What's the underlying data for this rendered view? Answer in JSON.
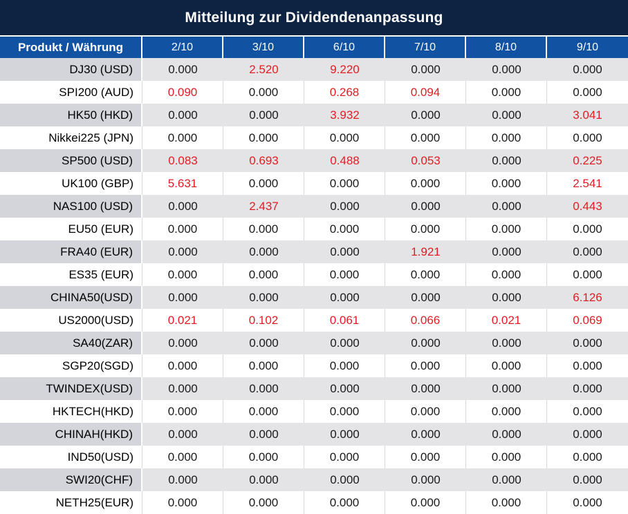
{
  "title": "Mitteilung zur Dividendenanpassung",
  "table": {
    "product_header": "Produkt / Währung",
    "date_headers": [
      "2/10",
      "3/10",
      "6/10",
      "7/10",
      "8/10",
      "9/10"
    ],
    "rows": [
      {
        "product": "DJ30 (USD)",
        "values": [
          "0.000",
          "2.520",
          "9.220",
          "0.000",
          "0.000",
          "0.000"
        ]
      },
      {
        "product": "SPI200 (AUD)",
        "values": [
          "0.090",
          "0.000",
          "0.268",
          "0.094",
          "0.000",
          "0.000"
        ]
      },
      {
        "product": "HK50 (HKD)",
        "values": [
          "0.000",
          "0.000",
          "3.932",
          "0.000",
          "0.000",
          "3.041"
        ]
      },
      {
        "product": "Nikkei225 (JPN)",
        "values": [
          "0.000",
          "0.000",
          "0.000",
          "0.000",
          "0.000",
          "0.000"
        ]
      },
      {
        "product": "SP500 (USD)",
        "values": [
          "0.083",
          "0.693",
          "0.488",
          "0.053",
          "0.000",
          "0.225"
        ]
      },
      {
        "product": "UK100 (GBP)",
        "values": [
          "5.631",
          "0.000",
          "0.000",
          "0.000",
          "0.000",
          "2.541"
        ]
      },
      {
        "product": "NAS100 (USD)",
        "values": [
          "0.000",
          "2.437",
          "0.000",
          "0.000",
          "0.000",
          "0.443"
        ]
      },
      {
        "product": "EU50 (EUR)",
        "values": [
          "0.000",
          "0.000",
          "0.000",
          "0.000",
          "0.000",
          "0.000"
        ]
      },
      {
        "product": "FRA40 (EUR)",
        "values": [
          "0.000",
          "0.000",
          "0.000",
          "1.921",
          "0.000",
          "0.000"
        ]
      },
      {
        "product": "ES35 (EUR)",
        "values": [
          "0.000",
          "0.000",
          "0.000",
          "0.000",
          "0.000",
          "0.000"
        ]
      },
      {
        "product": "CHINA50(USD)",
        "values": [
          "0.000",
          "0.000",
          "0.000",
          "0.000",
          "0.000",
          "6.126"
        ]
      },
      {
        "product": "US2000(USD)",
        "values": [
          "0.021",
          "0.102",
          "0.061",
          "0.066",
          "0.021",
          "0.069"
        ]
      },
      {
        "product": "SA40(ZAR)",
        "values": [
          "0.000",
          "0.000",
          "0.000",
          "0.000",
          "0.000",
          "0.000"
        ]
      },
      {
        "product": "SGP20(SGD)",
        "values": [
          "0.000",
          "0.000",
          "0.000",
          "0.000",
          "0.000",
          "0.000"
        ]
      },
      {
        "product": "TWINDEX(USD)",
        "values": [
          "0.000",
          "0.000",
          "0.000",
          "0.000",
          "0.000",
          "0.000"
        ]
      },
      {
        "product": "HKTECH(HKD)",
        "values": [
          "0.000",
          "0.000",
          "0.000",
          "0.000",
          "0.000",
          "0.000"
        ]
      },
      {
        "product": "CHINAH(HKD)",
        "values": [
          "0.000",
          "0.000",
          "0.000",
          "0.000",
          "0.000",
          "0.000"
        ]
      },
      {
        "product": "IND50(USD)",
        "values": [
          "0.000",
          "0.000",
          "0.000",
          "0.000",
          "0.000",
          "0.000"
        ]
      },
      {
        "product": "SWI20(CHF)",
        "values": [
          "0.000",
          "0.000",
          "0.000",
          "0.000",
          "0.000",
          "0.000"
        ]
      },
      {
        "product": "NETH25(EUR)",
        "values": [
          "0.000",
          "0.000",
          "0.000",
          "0.000",
          "0.000",
          "0.000"
        ]
      }
    ]
  },
  "colors": {
    "title_bar_bg": "#0e2342",
    "header_bg": "#1252a3",
    "header_text": "#ffffff",
    "stripe_label_bg": "#d3d5da",
    "stripe_value_bg": "#e4e4e6",
    "white_row_bg": "#ffffff",
    "divider": "#d9d9d9",
    "value_text": "#1a1a1a",
    "nonzero_value_text": "#e11d23"
  }
}
